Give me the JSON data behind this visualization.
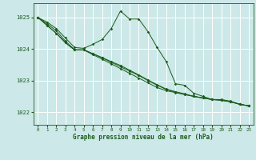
{
  "background_color": "#cce8e8",
  "grid_color": "#ffffff",
  "line_color": "#1a5c1a",
  "xlim": [
    -0.5,
    23.5
  ],
  "ylim": [
    1021.6,
    1025.45
  ],
  "yticks": [
    1022,
    1023,
    1024,
    1025
  ],
  "xticks": [
    0,
    1,
    2,
    3,
    4,
    5,
    6,
    7,
    8,
    9,
    10,
    11,
    12,
    13,
    14,
    15,
    16,
    17,
    18,
    19,
    20,
    21,
    22,
    23
  ],
  "xlabel": "Graphe pression niveau de la mer (hPa)",
  "series1": [
    1025.0,
    1024.85,
    1024.65,
    1024.35,
    1024.05,
    1024.02,
    1024.15,
    1024.3,
    1024.65,
    1025.2,
    1024.95,
    1024.95,
    1024.55,
    1024.05,
    1023.6,
    1022.9,
    1022.85,
    1022.6,
    1022.5,
    1022.4,
    1022.4,
    1022.35,
    1022.25,
    1022.2
  ],
  "series2": [
    1025.0,
    1024.75,
    1024.5,
    1024.2,
    1023.97,
    1023.97,
    1023.82,
    1023.68,
    1023.53,
    1023.38,
    1023.23,
    1023.08,
    1022.93,
    1022.78,
    1022.68,
    1022.62,
    1022.56,
    1022.5,
    1022.45,
    1022.4,
    1022.38,
    1022.33,
    1022.25,
    1022.2
  ],
  "series3": [
    1025.0,
    1024.75,
    1024.5,
    1024.2,
    1023.97,
    1023.97,
    1023.85,
    1023.73,
    1023.6,
    1023.48,
    1023.33,
    1023.18,
    1023.02,
    1022.87,
    1022.73,
    1022.65,
    1022.58,
    1022.5,
    1022.45,
    1022.4,
    1022.38,
    1022.33,
    1022.25,
    1022.2
  ],
  "series4": [
    1025.0,
    1024.8,
    1024.58,
    1024.25,
    1023.98,
    1023.98,
    1023.85,
    1023.72,
    1023.58,
    1023.44,
    1023.3,
    1023.16,
    1023.0,
    1022.85,
    1022.72,
    1022.63,
    1022.56,
    1022.5,
    1022.45,
    1022.4,
    1022.38,
    1022.33,
    1022.25,
    1022.2
  ]
}
